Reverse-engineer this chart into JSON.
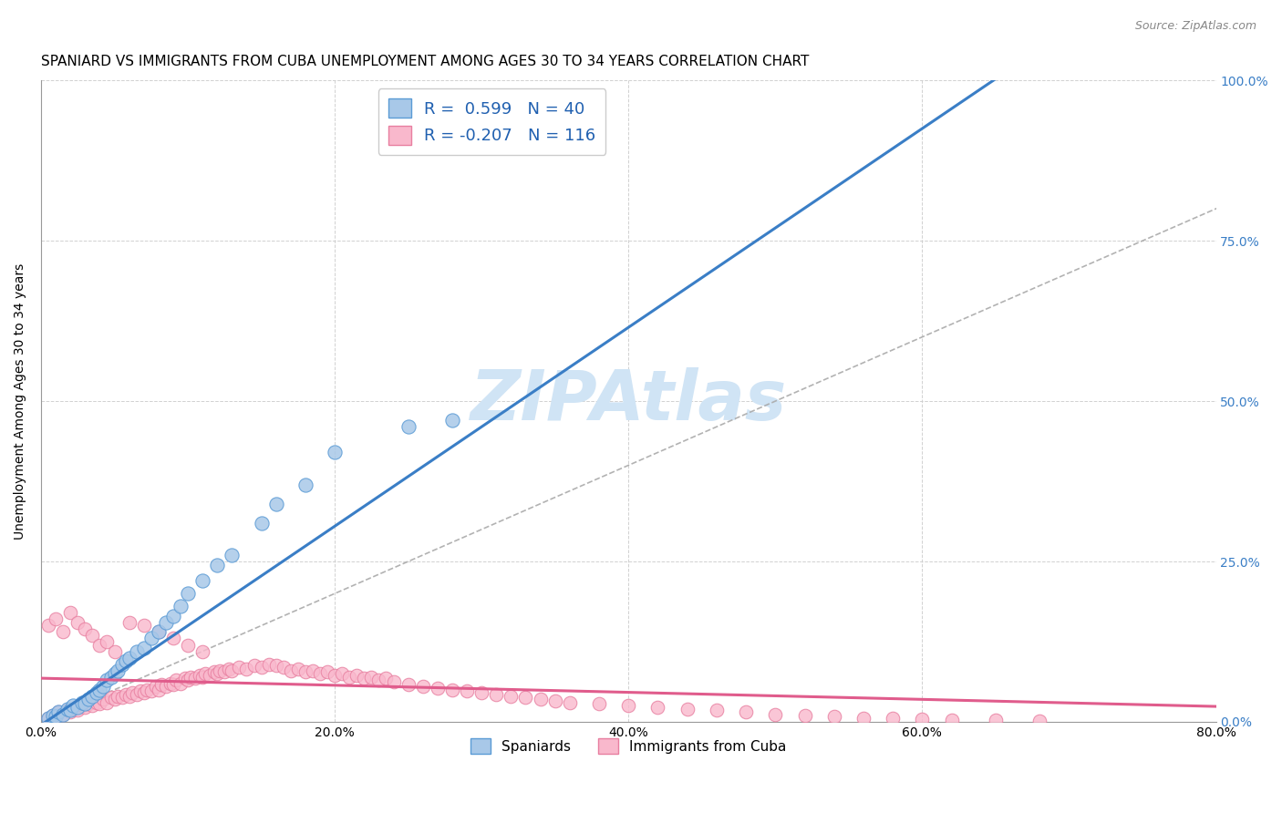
{
  "title": "SPANIARD VS IMMIGRANTS FROM CUBA UNEMPLOYMENT AMONG AGES 30 TO 34 YEARS CORRELATION CHART",
  "source": "Source: ZipAtlas.com",
  "ylabel": "Unemployment Among Ages 30 to 34 years",
  "xlim": [
    0.0,
    0.8
  ],
  "ylim": [
    0.0,
    1.0
  ],
  "spaniards_color": "#a8c8e8",
  "spaniards_edge": "#5b9bd5",
  "cuba_color": "#f9b8cc",
  "cuba_edge": "#e87fa0",
  "spaniards_line_color": "#3a7ec6",
  "cuba_line_color": "#e05c8c",
  "ref_line_color": "#aaaaaa",
  "watermark": "ZIPAtlas",
  "watermark_color": "#d0e4f5",
  "title_fontsize": 11,
  "axis_label_fontsize": 10,
  "tick_fontsize": 10,
  "legend_fontsize": 13,
  "watermark_fontsize": 55,
  "spaniards_x": [
    0.005,
    0.008,
    0.01,
    0.012,
    0.015,
    0.018,
    0.02,
    0.022,
    0.025,
    0.028,
    0.03,
    0.032,
    0.035,
    0.038,
    0.04,
    0.042,
    0.045,
    0.048,
    0.05,
    0.052,
    0.055,
    0.058,
    0.06,
    0.065,
    0.07,
    0.075,
    0.08,
    0.085,
    0.09,
    0.095,
    0.1,
    0.11,
    0.12,
    0.13,
    0.15,
    0.16,
    0.18,
    0.2,
    0.25,
    0.28
  ],
  "spaniards_y": [
    0.005,
    0.01,
    0.008,
    0.015,
    0.012,
    0.02,
    0.018,
    0.025,
    0.022,
    0.03,
    0.028,
    0.035,
    0.04,
    0.045,
    0.05,
    0.055,
    0.065,
    0.07,
    0.075,
    0.08,
    0.09,
    0.095,
    0.1,
    0.11,
    0.115,
    0.13,
    0.14,
    0.155,
    0.165,
    0.18,
    0.2,
    0.22,
    0.245,
    0.26,
    0.31,
    0.34,
    0.37,
    0.42,
    0.46,
    0.47
  ],
  "cuba_x": [
    0.005,
    0.008,
    0.01,
    0.012,
    0.015,
    0.018,
    0.02,
    0.022,
    0.025,
    0.028,
    0.03,
    0.032,
    0.035,
    0.038,
    0.04,
    0.042,
    0.045,
    0.048,
    0.05,
    0.052,
    0.055,
    0.058,
    0.06,
    0.062,
    0.065,
    0.068,
    0.07,
    0.072,
    0.075,
    0.078,
    0.08,
    0.082,
    0.085,
    0.088,
    0.09,
    0.092,
    0.095,
    0.098,
    0.1,
    0.102,
    0.105,
    0.108,
    0.11,
    0.112,
    0.115,
    0.118,
    0.12,
    0.122,
    0.125,
    0.128,
    0.13,
    0.135,
    0.14,
    0.145,
    0.15,
    0.155,
    0.16,
    0.165,
    0.17,
    0.175,
    0.18,
    0.185,
    0.19,
    0.195,
    0.2,
    0.205,
    0.21,
    0.215,
    0.22,
    0.225,
    0.23,
    0.235,
    0.24,
    0.25,
    0.26,
    0.27,
    0.28,
    0.29,
    0.3,
    0.31,
    0.32,
    0.33,
    0.34,
    0.35,
    0.36,
    0.38,
    0.4,
    0.42,
    0.44,
    0.46,
    0.48,
    0.5,
    0.52,
    0.54,
    0.56,
    0.58,
    0.6,
    0.62,
    0.65,
    0.68,
    0.005,
    0.01,
    0.015,
    0.02,
    0.025,
    0.03,
    0.035,
    0.04,
    0.045,
    0.05,
    0.06,
    0.07,
    0.08,
    0.09,
    0.1,
    0.11
  ],
  "cuba_y": [
    0.005,
    0.01,
    0.008,
    0.015,
    0.012,
    0.018,
    0.015,
    0.02,
    0.018,
    0.025,
    0.022,
    0.028,
    0.025,
    0.03,
    0.028,
    0.035,
    0.03,
    0.038,
    0.035,
    0.04,
    0.038,
    0.042,
    0.04,
    0.045,
    0.042,
    0.048,
    0.045,
    0.05,
    0.048,
    0.055,
    0.05,
    0.058,
    0.055,
    0.06,
    0.058,
    0.065,
    0.06,
    0.068,
    0.065,
    0.07,
    0.068,
    0.072,
    0.07,
    0.075,
    0.072,
    0.078,
    0.075,
    0.08,
    0.078,
    0.082,
    0.08,
    0.085,
    0.082,
    0.088,
    0.085,
    0.09,
    0.088,
    0.085,
    0.08,
    0.082,
    0.078,
    0.08,
    0.075,
    0.078,
    0.072,
    0.075,
    0.07,
    0.072,
    0.068,
    0.07,
    0.065,
    0.068,
    0.062,
    0.058,
    0.055,
    0.052,
    0.05,
    0.048,
    0.045,
    0.042,
    0.04,
    0.038,
    0.035,
    0.032,
    0.03,
    0.028,
    0.025,
    0.022,
    0.02,
    0.018,
    0.015,
    0.012,
    0.01,
    0.008,
    0.006,
    0.005,
    0.004,
    0.003,
    0.003,
    0.002,
    0.15,
    0.16,
    0.14,
    0.17,
    0.155,
    0.145,
    0.135,
    0.12,
    0.125,
    0.11,
    0.155,
    0.15,
    0.14,
    0.13,
    0.12,
    0.11
  ]
}
